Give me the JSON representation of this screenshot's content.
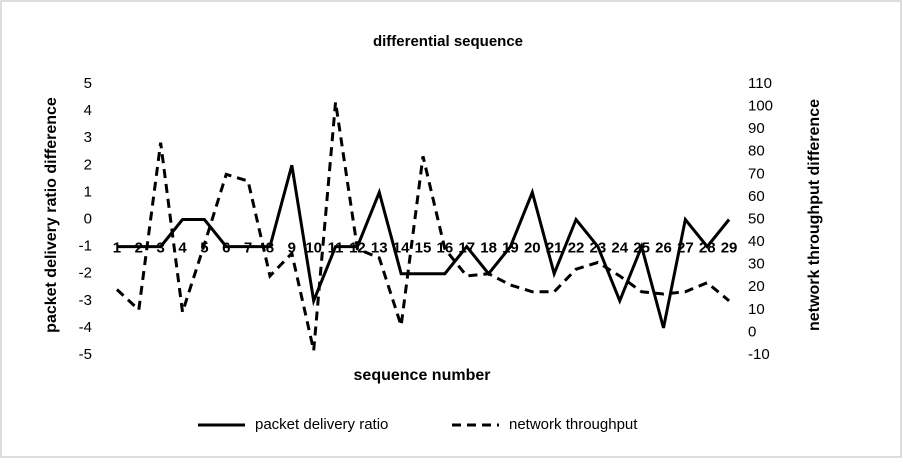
{
  "chart_data": {
    "type": "line",
    "title": "differential sequence",
    "x_label": "sequence number",
    "y_label": "packet delivery ratio difference",
    "y2_label": "network throughput difference",
    "categories": [
      "1",
      "2",
      "3",
      "4",
      "5",
      "6",
      "7",
      "8",
      "9",
      "10",
      "11",
      "12",
      "13",
      "14",
      "15",
      "16",
      "17",
      "18",
      "19",
      "20",
      "21",
      "22",
      "23",
      "24",
      "25",
      "26",
      "27",
      "28",
      "29"
    ],
    "category_axis_crosses": -1,
    "series": [
      {
        "name": "packet delivery ratio",
        "color": "#000000",
        "line_style": "solid",
        "values": [
          -1,
          -1,
          -1,
          0,
          0,
          -1,
          -1,
          -1,
          2,
          -3,
          -1,
          -1,
          1,
          -2,
          -2,
          -2,
          -1,
          -2,
          -1,
          1,
          -2,
          0,
          -1,
          -3,
          -1,
          -4,
          0,
          -1,
          0
        ]
      },
      {
        "name": "network throughput",
        "color": "#000000",
        "line_style": "dashed",
        "axis": "y2",
        "values": [
          19,
          10,
          84,
          9,
          39,
          70,
          67,
          25,
          35,
          -8,
          102,
          37,
          33,
          3,
          78,
          37,
          25,
          26,
          21,
          18,
          18,
          28,
          31,
          25,
          18,
          17,
          18,
          22,
          14
        ]
      }
    ],
    "ylim": [
      -5,
      5
    ],
    "yticks": [
      -5,
      -4,
      -3,
      -2,
      -1,
      0,
      1,
      2,
      3,
      4,
      5
    ],
    "y2lim": [
      -10,
      110
    ],
    "y2ticks": [
      -10,
      0,
      10,
      20,
      30,
      40,
      50,
      60,
      70,
      80,
      90,
      100,
      110
    ],
    "grid": false,
    "legend": "bottom"
  }
}
